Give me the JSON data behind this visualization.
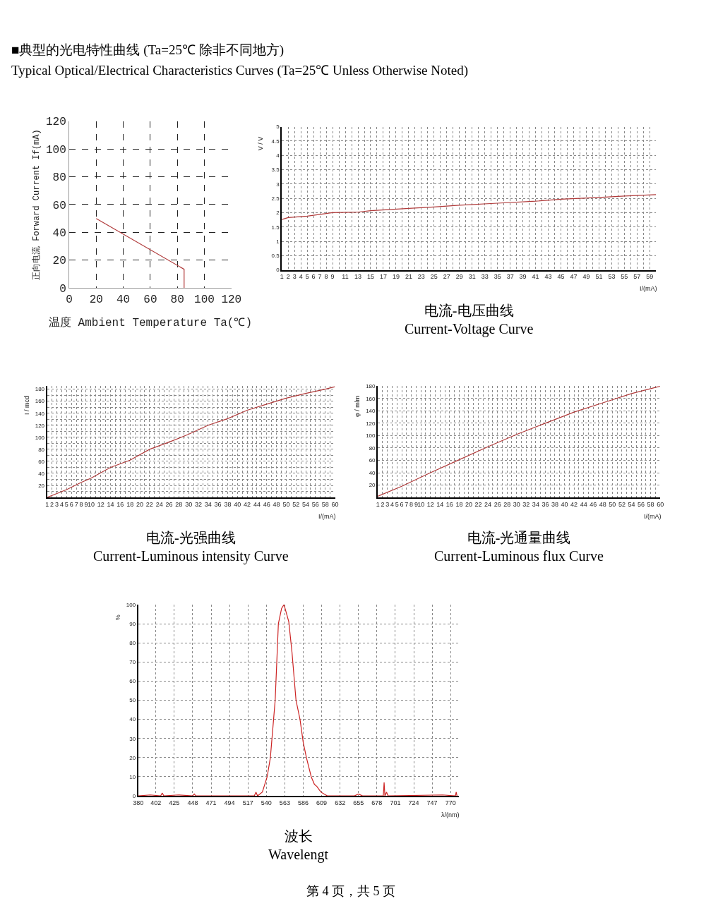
{
  "chart_data": [
    {
      "type": "line",
      "xlabel": "温度 Ambient Temperature Ta(℃)",
      "ylabel": "正向电流 Forward Current If(mA)",
      "annotations": [
        "■典型的光电特性曲线 (Ta=25℃ 除非不同地方)",
        "Typical Optical/Electrical Characteristics Curves (Ta=25℃ Unless Otherwise Noted)"
      ],
      "x": [
        20,
        85,
        85
      ],
      "values": [
        50,
        13.5,
        0
      ],
      "color": "#b03a3a",
      "xlim": [
        0,
        120
      ],
      "xticks": [
        0,
        20,
        40,
        60,
        80,
        100,
        120
      ],
      "ylim": [
        0,
        120
      ],
      "yticks": [
        0,
        20,
        40,
        60,
        80,
        100,
        120
      ],
      "grid": true,
      "line_style": "solid",
      "legend": false
    },
    {
      "type": "line",
      "title": "电流-电压曲线\nCurrent-Voltage Curve",
      "xlabel": "I/(mA)",
      "ylabel": "V / V",
      "x": [
        1,
        2,
        5,
        9,
        13,
        15,
        21,
        25,
        29,
        35,
        41,
        45,
        51,
        55,
        60
      ],
      "values": [
        1.76,
        1.83,
        1.88,
        2.0,
        2.02,
        2.07,
        2.15,
        2.2,
        2.26,
        2.33,
        2.4,
        2.47,
        2.53,
        2.58,
        2.63
      ],
      "color": "#b03a3a",
      "xlim": [
        1,
        60
      ],
      "xticks": [
        1,
        2,
        3,
        4,
        5,
        6,
        7,
        8,
        9,
        {
          "value": 10,
          "label": null
        },
        11,
        {
          "value": 12,
          "label": null
        },
        13,
        {
          "value": 14,
          "label": null
        },
        15,
        {
          "value": 16,
          "label": null
        },
        17,
        {
          "value": 18,
          "label": null
        },
        19,
        {
          "value": 20,
          "label": null
        },
        21,
        {
          "value": 22,
          "label": null
        },
        23,
        {
          "value": 24,
          "label": null
        },
        25,
        {
          "value": 26,
          "label": null
        },
        27,
        {
          "value": 28,
          "label": null
        },
        29,
        {
          "value": 30,
          "label": null
        },
        31,
        {
          "value": 32,
          "label": null
        },
        33,
        {
          "value": 34,
          "label": null
        },
        35,
        {
          "value": 36,
          "label": null
        },
        37,
        {
          "value": 38,
          "label": null
        },
        39,
        {
          "value": 40,
          "label": null
        },
        41,
        {
          "value": 42,
          "label": null
        },
        43,
        {
          "value": 44,
          "label": null
        },
        45,
        {
          "value": 46,
          "label": null
        },
        47,
        {
          "value": 48,
          "label": null
        },
        49,
        {
          "value": 50,
          "label": null
        },
        51,
        {
          "value": 52,
          "label": null
        },
        53,
        {
          "value": 54,
          "label": null
        },
        55,
        {
          "value": 56,
          "label": null
        },
        57,
        {
          "value": 58,
          "label": null
        },
        59
      ],
      "ylim": [
        0,
        5
      ],
      "yticks": [
        0,
        0.5,
        1,
        1.5,
        2,
        2.5,
        3,
        3.5,
        4,
        4.5,
        5
      ],
      "grid": true,
      "line_style": "solid",
      "legend": false
    },
    {
      "type": "line",
      "title": "电流-光强曲线\nCurrent-Luminous intensity Curve",
      "xlabel": "I/(mA)",
      "ylabel": "I / mcd",
      "x": [
        1,
        5,
        8,
        10,
        14,
        18,
        22,
        26,
        30,
        34,
        38,
        42,
        46,
        50,
        54,
        58,
        60
      ],
      "values": [
        0,
        13,
        25,
        32,
        50,
        62,
        80,
        92,
        105,
        120,
        131,
        145,
        155,
        165,
        173,
        180,
        184
      ],
      "color": "#b03a3a",
      "xlim": [
        1,
        60
      ],
      "xticks": [
        1,
        2,
        3,
        4,
        5,
        6,
        7,
        8,
        9,
        10,
        {
          "value": 11,
          "label": null
        },
        12,
        {
          "value": 13,
          "label": null
        },
        14,
        {
          "value": 15,
          "label": null
        },
        16,
        {
          "value": 17,
          "label": null
        },
        18,
        {
          "value": 19,
          "label": null
        },
        20,
        {
          "value": 21,
          "label": null
        },
        22,
        {
          "value": 23,
          "label": null
        },
        24,
        {
          "value": 25,
          "label": null
        },
        26,
        {
          "value": 27,
          "label": null
        },
        28,
        {
          "value": 29,
          "label": null
        },
        30,
        {
          "value": 31,
          "label": null
        },
        32,
        {
          "value": 33,
          "label": null
        },
        34,
        {
          "value": 35,
          "label": null
        },
        36,
        {
          "value": 37,
          "label": null
        },
        38,
        {
          "value": 39,
          "label": null
        },
        40,
        {
          "value": 41,
          "label": null
        },
        42,
        {
          "value": 43,
          "label": null
        },
        44,
        {
          "value": 45,
          "label": null
        },
        46,
        {
          "value": 47,
          "label": null
        },
        48,
        {
          "value": 49,
          "label": null
        },
        50,
        {
          "value": 51,
          "label": null
        },
        52,
        {
          "value": 53,
          "label": null
        },
        54,
        {
          "value": 55,
          "label": null
        },
        56,
        {
          "value": 57,
          "label": null
        },
        58,
        {
          "value": 59,
          "label": null
        },
        60
      ],
      "ylim": [
        0,
        185
      ],
      "yticks": [
        {
          "value": 10,
          "label": null
        },
        20,
        {
          "value": 30,
          "label": null
        },
        40,
        {
          "value": 50,
          "label": null
        },
        60,
        {
          "value": 70,
          "label": null
        },
        80,
        {
          "value": 90,
          "label": null
        },
        100,
        {
          "value": 110,
          "label": null
        },
        120,
        {
          "value": 130,
          "label": null
        },
        140,
        {
          "value": 150,
          "label": null
        },
        160,
        {
          "value": 170,
          "label": null
        },
        180
      ],
      "grid": true,
      "line_style": "solid",
      "legend": false
    },
    {
      "type": "line",
      "title": "电流-光通量曲线\nCurrent-Luminous flux Curve",
      "xlabel": "I/(mA)",
      "ylabel": "φ / mlm",
      "x": [
        1,
        6,
        12,
        18,
        24,
        30,
        36,
        42,
        48,
        54,
        60
      ],
      "values": [
        2,
        18,
        40,
        61,
        82,
        102,
        120,
        138,
        153,
        168,
        180
      ],
      "color": "#b03a3a",
      "xlim": [
        1,
        60
      ],
      "xticks": [
        1,
        2,
        3,
        4,
        5,
        6,
        7,
        8,
        9,
        10,
        {
          "value": 11,
          "label": null
        },
        12,
        {
          "value": 13,
          "label": null
        },
        14,
        {
          "value": 15,
          "label": null
        },
        16,
        {
          "value": 17,
          "label": null
        },
        18,
        {
          "value": 19,
          "label": null
        },
        20,
        {
          "value": 21,
          "label": null
        },
        22,
        {
          "value": 23,
          "label": null
        },
        24,
        {
          "value": 25,
          "label": null
        },
        26,
        {
          "value": 27,
          "label": null
        },
        28,
        {
          "value": 29,
          "label": null
        },
        30,
        {
          "value": 31,
          "label": null
        },
        32,
        {
          "value": 33,
          "label": null
        },
        34,
        {
          "value": 35,
          "label": null
        },
        36,
        {
          "value": 37,
          "label": null
        },
        38,
        {
          "value": 39,
          "label": null
        },
        40,
        {
          "value": 41,
          "label": null
        },
        42,
        {
          "value": 43,
          "label": null
        },
        44,
        {
          "value": 45,
          "label": null
        },
        46,
        {
          "value": 47,
          "label": null
        },
        48,
        {
          "value": 49,
          "label": null
        },
        50,
        {
          "value": 51,
          "label": null
        },
        52,
        {
          "value": 53,
          "label": null
        },
        54,
        {
          "value": 55,
          "label": null
        },
        56,
        {
          "value": 57,
          "label": null
        },
        58,
        {
          "value": 59,
          "label": null
        },
        60
      ],
      "ylim": [
        0,
        180
      ],
      "yticks": [
        20,
        40,
        60,
        80,
        100,
        120,
        140,
        160,
        180
      ],
      "grid": true,
      "line_style": "solid",
      "legend": false
    },
    {
      "type": "line",
      "title": "波长\nWavelengt",
      "xlabel": "λ/(nm)",
      "ylabel": "%",
      "annotations": [
        "第 4 页，共 5 页"
      ],
      "x": [
        380,
        395,
        408,
        410,
        412,
        430,
        448,
        450,
        452,
        480,
        525,
        527,
        529,
        535,
        541,
        545,
        551,
        555,
        559,
        562,
        566,
        568,
        572,
        577,
        582,
        586,
        590,
        593,
        596,
        600,
        603,
        608,
        616,
        650,
        655,
        660,
        686,
        687,
        688,
        690,
        692,
        760,
        776,
        777,
        778
      ],
      "values": [
        0,
        0.5,
        0,
        1.5,
        0,
        0.5,
        0,
        1,
        0,
        0,
        0,
        2,
        0,
        2,
        10,
        20,
        50,
        90,
        98,
        100,
        94,
        91,
        75,
        50,
        40,
        28,
        20,
        15,
        10,
        6,
        5,
        2,
        0,
        0,
        1,
        0,
        0,
        7,
        0,
        2,
        0,
        0.5,
        0,
        2,
        0
      ],
      "color": "#cc2222",
      "xlim": [
        380,
        780
      ],
      "xticks": [
        380,
        402,
        425,
        448,
        471,
        494,
        517,
        540,
        563,
        586,
        609,
        632,
        655,
        678,
        701,
        724,
        747,
        770
      ],
      "ylim": [
        0,
        100
      ],
      "yticks": [
        0,
        10,
        20,
        30,
        40,
        50,
        60,
        70,
        80,
        90,
        100
      ],
      "grid": true,
      "line_style": "solid",
      "legend": false
    }
  ]
}
